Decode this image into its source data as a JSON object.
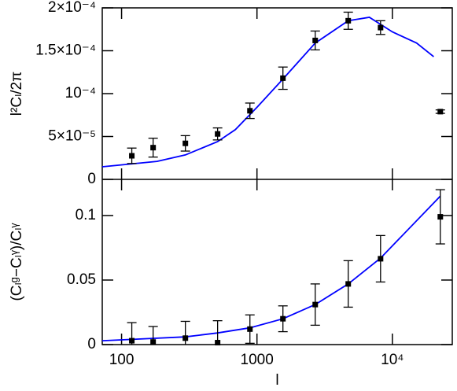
{
  "chart_data": [
    {
      "type": "line",
      "ylabel": "l²Cₗ/2π",
      "log_x": true,
      "xlim": [
        72,
        27700
      ],
      "ylim": [
        0,
        0.0002
      ],
      "yticks": [
        0,
        {
          "value": 5e-05,
          "label": "5×10⁻⁵"
        },
        {
          "value": 0.0001,
          "label": "10⁻⁴"
        },
        {
          "value": 0.00015,
          "label": "1.5×10⁻⁴"
        },
        {
          "value": 0.0002,
          "label": "2×10⁻⁴"
        }
      ],
      "points": {
        "color": "#000000",
        "x": [
          119,
          171,
          296,
          512,
          887,
          1555,
          2693,
          4720,
          8180,
          22600
        ],
        "y": [
          2.75e-05,
          3.7e-05,
          4.2e-05,
          5.3e-05,
          8e-05,
          0.000118,
          0.000162,
          0.000185,
          0.000177,
          7.9e-05
        ],
        "err": [
          9e-06,
          1.1e-05,
          9e-06,
          7e-06,
          9e-06,
          1.3e-05,
          1.1e-05,
          1e-05,
          8e-06,
          2e-06
        ]
      },
      "curve": {
        "color": "#0000ff",
        "x": [
          72,
          183,
          296,
          512,
          692,
          1000,
          1555,
          2693,
          4720,
          6760,
          10000,
          15100,
          20200
        ],
        "y": [
          1.47e-05,
          2.1e-05,
          2.85e-05,
          4.4e-05,
          5.8e-05,
          8.4e-05,
          0.000117,
          0.000159,
          0.000185,
          0.000189,
          0.000172,
          0.000159,
          0.000143
        ]
      }
    },
    {
      "type": "line",
      "ylabel": "(Cₗᵍ−Cₗᵞ)/Cₗᵞ",
      "xlabel": "l",
      "log_x": true,
      "xlim": [
        72,
        27700
      ],
      "ylim": [
        0,
        0.128
      ],
      "xticks": [
        100,
        1000,
        {
          "value": 10000,
          "label": "10⁴"
        }
      ],
      "yticks": [
        0,
        0.05,
        0.1
      ],
      "points": {
        "color": "#000000",
        "x": [
          119,
          171,
          296,
          512,
          887,
          1555,
          2693,
          4720,
          8180,
          22600
        ],
        "y": [
          0.003,
          0.002,
          0.005,
          0.0015,
          0.012,
          0.02,
          0.031,
          0.047,
          0.0665,
          0.099
        ],
        "err": [
          0.014,
          0.012,
          0.013,
          0.017,
          0.011,
          0.01,
          0.016,
          0.018,
          0.018,
          0.021
        ]
      },
      "curve": {
        "color": "#0000ff",
        "x": [
          72,
          119,
          296,
          512,
          887,
          1555,
          2693,
          4720,
          8180,
          22600
        ],
        "y": [
          0.003,
          0.004,
          0.006,
          0.009,
          0.013,
          0.02,
          0.031,
          0.047,
          0.067,
          0.115
        ]
      }
    }
  ]
}
